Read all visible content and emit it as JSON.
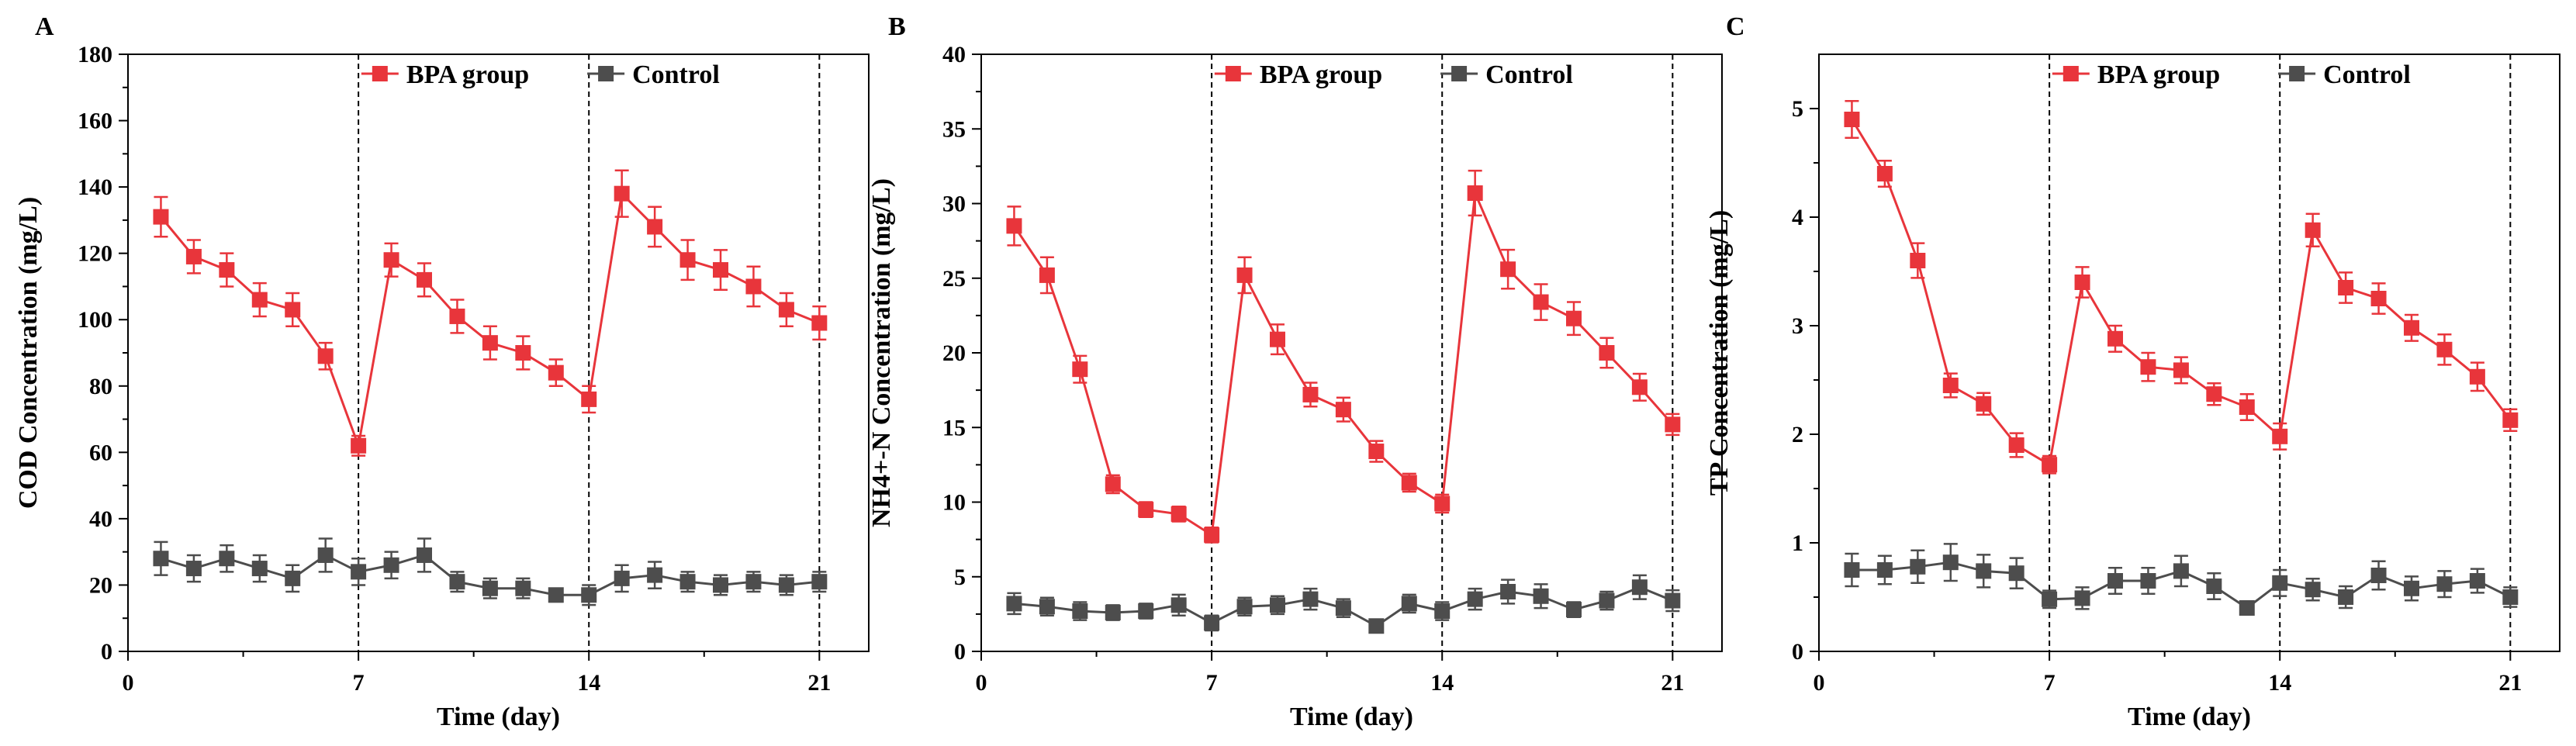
{
  "chart_data": [
    {
      "type": "line",
      "panel": "A",
      "title": "",
      "xlabel": "Time (day)",
      "ylabel": "COD Concentration (mg/L)",
      "xlim": [
        0,
        22.5
      ],
      "ylim": [
        0,
        180
      ],
      "xticks": [
        0,
        7,
        14,
        21
      ],
      "yticks": [
        0,
        20,
        40,
        60,
        80,
        100,
        120,
        140,
        160,
        180
      ],
      "vlines": [
        7,
        14,
        21
      ],
      "legend": "top",
      "x": [
        1,
        2,
        3,
        4,
        5,
        6,
        7,
        8,
        9,
        10,
        11,
        12,
        13,
        14,
        15,
        16,
        17,
        18,
        19,
        20,
        21
      ],
      "series": [
        {
          "name": "BPA group",
          "color": "#e8353b",
          "values": [
            131,
            119,
            115,
            106,
            103,
            89,
            62,
            118,
            112,
            101,
            93,
            90,
            84,
            76,
            138,
            128,
            118,
            115,
            110,
            103,
            99
          ],
          "errors": [
            6,
            5,
            5,
            5,
            5,
            4,
            3,
            5,
            5,
            5,
            5,
            5,
            4,
            4,
            7,
            6,
            6,
            6,
            6,
            5,
            5
          ]
        },
        {
          "name": "Control",
          "color": "#4d4d4d",
          "values": [
            28,
            25,
            28,
            25,
            22,
            29,
            24,
            26,
            29,
            21,
            19,
            19,
            17,
            17,
            22,
            23,
            21,
            20,
            21,
            20,
            21
          ],
          "errors": [
            5,
            4,
            4,
            4,
            4,
            5,
            4,
            4,
            5,
            3,
            3,
            3,
            2,
            3,
            4,
            4,
            3,
            3,
            3,
            3,
            3
          ]
        }
      ]
    },
    {
      "type": "line",
      "panel": "B",
      "title": "",
      "xlabel": "Time (day)",
      "ylabel": "NH4+-N Concentration (mg/L)",
      "xlim": [
        0,
        22.5
      ],
      "ylim": [
        0,
        40
      ],
      "xticks": [
        0,
        7,
        14,
        21
      ],
      "yticks": [
        0,
        5,
        10,
        15,
        20,
        25,
        30,
        35,
        40
      ],
      "vlines": [
        7,
        14,
        21
      ],
      "legend": "top",
      "x": [
        1,
        2,
        3,
        4,
        5,
        6,
        7,
        8,
        9,
        10,
        11,
        12,
        13,
        14,
        15,
        16,
        17,
        18,
        19,
        20,
        21
      ],
      "series": [
        {
          "name": "BPA group",
          "color": "#e8353b",
          "values": [
            28.5,
            25.2,
            18.9,
            11.2,
            9.5,
            9.2,
            7.8,
            25.2,
            20.9,
            17.2,
            16.2,
            13.4,
            11.3,
            9.9,
            30.7,
            25.6,
            23.4,
            22.3,
            20.0,
            17.7,
            15.2
          ],
          "errors": [
            1.3,
            1.2,
            0.9,
            0.6,
            0.5,
            0.5,
            0.5,
            1.2,
            1.0,
            0.8,
            0.8,
            0.7,
            0.6,
            0.6,
            1.5,
            1.3,
            1.2,
            1.1,
            1.0,
            0.9,
            0.7
          ]
        },
        {
          "name": "Control",
          "color": "#4d4d4d",
          "values": [
            3.2,
            3.0,
            2.7,
            2.6,
            2.7,
            3.1,
            1.9,
            3.0,
            3.1,
            3.5,
            2.9,
            1.7,
            3.2,
            2.7,
            3.5,
            4.0,
            3.7,
            2.8,
            3.4,
            4.3,
            3.4
          ],
          "errors": [
            0.7,
            0.6,
            0.6,
            0.5,
            0.5,
            0.7,
            0.5,
            0.6,
            0.6,
            0.7,
            0.6,
            0.4,
            0.6,
            0.6,
            0.7,
            0.8,
            0.8,
            0.5,
            0.6,
            0.8,
            0.7
          ]
        }
      ]
    },
    {
      "type": "line",
      "panel": "C",
      "title": "",
      "xlabel": "Time (day)",
      "ylabel": "TP Concentration (mg/L)",
      "xlim": [
        0,
        22.5
      ],
      "ylim": [
        0,
        5.5
      ],
      "xticks": [
        0,
        7,
        14,
        21
      ],
      "yticks": [
        0,
        1,
        2,
        3,
        4,
        5
      ],
      "vlines": [
        7,
        14,
        21
      ],
      "legend": "top",
      "x": [
        1,
        2,
        3,
        4,
        5,
        6,
        7,
        8,
        9,
        10,
        11,
        12,
        13,
        14,
        15,
        16,
        17,
        18,
        19,
        20,
        21
      ],
      "series": [
        {
          "name": "BPA group",
          "color": "#e8353b",
          "values": [
            4.9,
            4.4,
            3.6,
            2.45,
            2.28,
            1.9,
            1.72,
            3.4,
            2.88,
            2.62,
            2.59,
            2.37,
            2.25,
            1.98,
            3.88,
            3.35,
            3.25,
            2.98,
            2.78,
            2.53,
            2.13
          ],
          "errors": [
            0.17,
            0.12,
            0.16,
            0.11,
            0.1,
            0.11,
            0.08,
            0.14,
            0.12,
            0.13,
            0.12,
            0.1,
            0.12,
            0.12,
            0.15,
            0.14,
            0.14,
            0.12,
            0.14,
            0.13,
            0.1
          ]
        },
        {
          "name": "Control",
          "color": "#4d4d4d",
          "values": [
            0.75,
            0.75,
            0.78,
            0.82,
            0.74,
            0.72,
            0.48,
            0.49,
            0.65,
            0.65,
            0.74,
            0.6,
            0.4,
            0.63,
            0.57,
            0.5,
            0.7,
            0.58,
            0.62,
            0.65,
            0.5
          ],
          "errors": [
            0.15,
            0.13,
            0.15,
            0.17,
            0.15,
            0.14,
            0.08,
            0.1,
            0.12,
            0.12,
            0.14,
            0.12,
            0.06,
            0.12,
            0.1,
            0.1,
            0.13,
            0.11,
            0.12,
            0.11,
            0.09
          ]
        }
      ]
    }
  ]
}
